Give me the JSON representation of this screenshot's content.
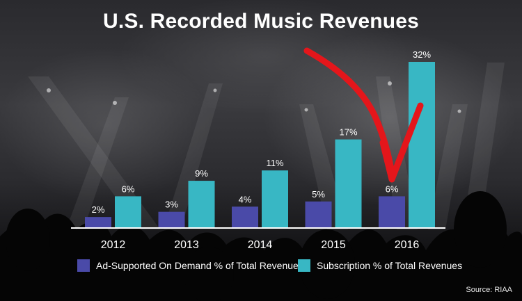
{
  "title": "U.S. Recorded Music Revenues",
  "source": "Source: RIAA",
  "colors": {
    "ad_supported": "#4a4aa8",
    "subscription": "#38b7c4",
    "arrow": "#e4161b",
    "axis": "#ffffff"
  },
  "chart_data": {
    "type": "bar",
    "title": "U.S. Recorded Music Revenues",
    "categories": [
      "2012",
      "2013",
      "2014",
      "2015",
      "2016"
    ],
    "series": [
      {
        "name": "Ad-Supported On Demand % of Total Revenues",
        "values": [
          2,
          3,
          4,
          5,
          6
        ],
        "labels": [
          "2%",
          "3%",
          "4%",
          "5%",
          "6%"
        ]
      },
      {
        "name": "Subscription % of Total Revenues",
        "values": [
          6,
          9,
          11,
          17,
          32
        ],
        "labels": [
          "6%",
          "9%",
          "11%",
          "17%",
          "32%"
        ]
      }
    ],
    "ylim": [
      0,
      32
    ],
    "grid": false,
    "legend": "bottom",
    "annotation": "red arrow pointing to 2016 ad-supported bar"
  }
}
